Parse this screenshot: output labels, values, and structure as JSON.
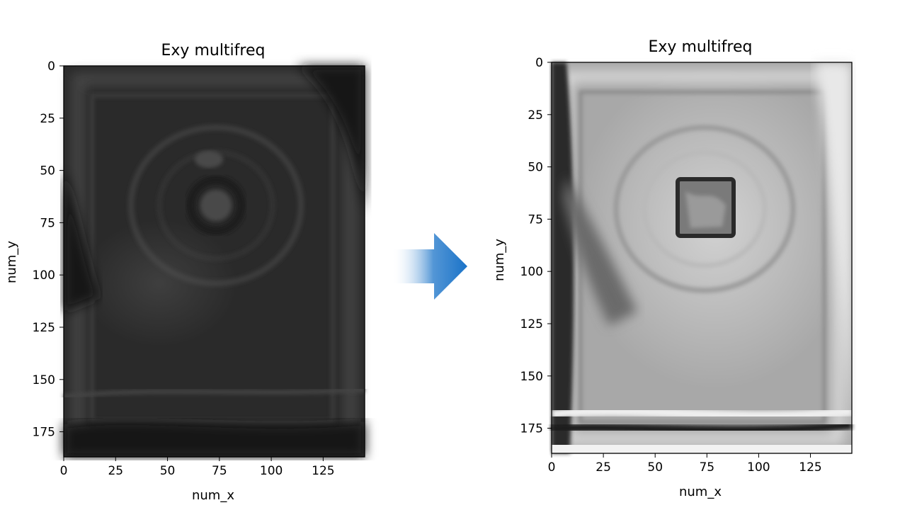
{
  "chart_data": [
    {
      "type": "heatmap",
      "title": "Exy multifreq",
      "xlabel": "num_x",
      "ylabel": "num_y",
      "xlim": [
        0,
        145
      ],
      "ylim": [
        187,
        0
      ],
      "xticks": [
        0,
        25,
        50,
        75,
        100,
        125
      ],
      "yticks": [
        0,
        25,
        50,
        75,
        100,
        125,
        150,
        175
      ],
      "colormap": "gray",
      "brightness": "dark",
      "feature": {
        "kind": "blurred-ring",
        "center": [
          76,
          64
        ],
        "radius": 13
      }
    },
    {
      "type": "heatmap",
      "title": "Exy multifreq",
      "xlabel": "num_x",
      "ylabel": "num_y",
      "xlim": [
        0,
        145
      ],
      "ylim": [
        187,
        0
      ],
      "xticks": [
        0,
        25,
        50,
        75,
        100,
        125
      ],
      "yticks": [
        0,
        25,
        50,
        75,
        100,
        125,
        150,
        175
      ],
      "colormap": "gray",
      "brightness": "bright",
      "feature": {
        "kind": "square",
        "x_range": [
          61,
          88
        ],
        "y_range": [
          55,
          83
        ]
      }
    }
  ],
  "arrow": {
    "direction": "right",
    "color": "#1a73c8"
  }
}
